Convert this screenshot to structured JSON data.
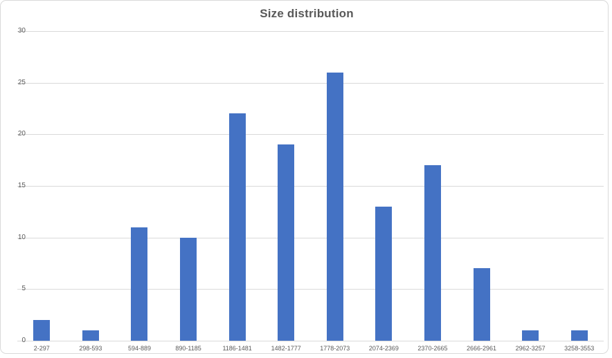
{
  "chart_data": {
    "type": "bar",
    "title": "Size distribution",
    "categories": [
      "2-297",
      "298-593",
      "594-889",
      "890-1185",
      "1186-1481",
      "1482-1777",
      "1778-2073",
      "2074-2369",
      "2370-2665",
      "2666-2961",
      "2962-3257",
      "3258-3553"
    ],
    "values": [
      2,
      1,
      11,
      10,
      22,
      19,
      26,
      13,
      17,
      7,
      1,
      1
    ],
    "xlabel": "",
    "ylabel": "",
    "ylim": [
      0,
      30
    ],
    "yticks": [
      0,
      5,
      10,
      15,
      20,
      25,
      30
    ],
    "grid": true,
    "legend": false,
    "colors": {
      "bar": "#4472C4",
      "gridline": "#D9D9D9",
      "axis_line": "#D9D9D9",
      "tick_text": "#595959",
      "title_text": "#595959",
      "chart_border": "#D9D9D9",
      "background": "#FFFFFF"
    }
  }
}
